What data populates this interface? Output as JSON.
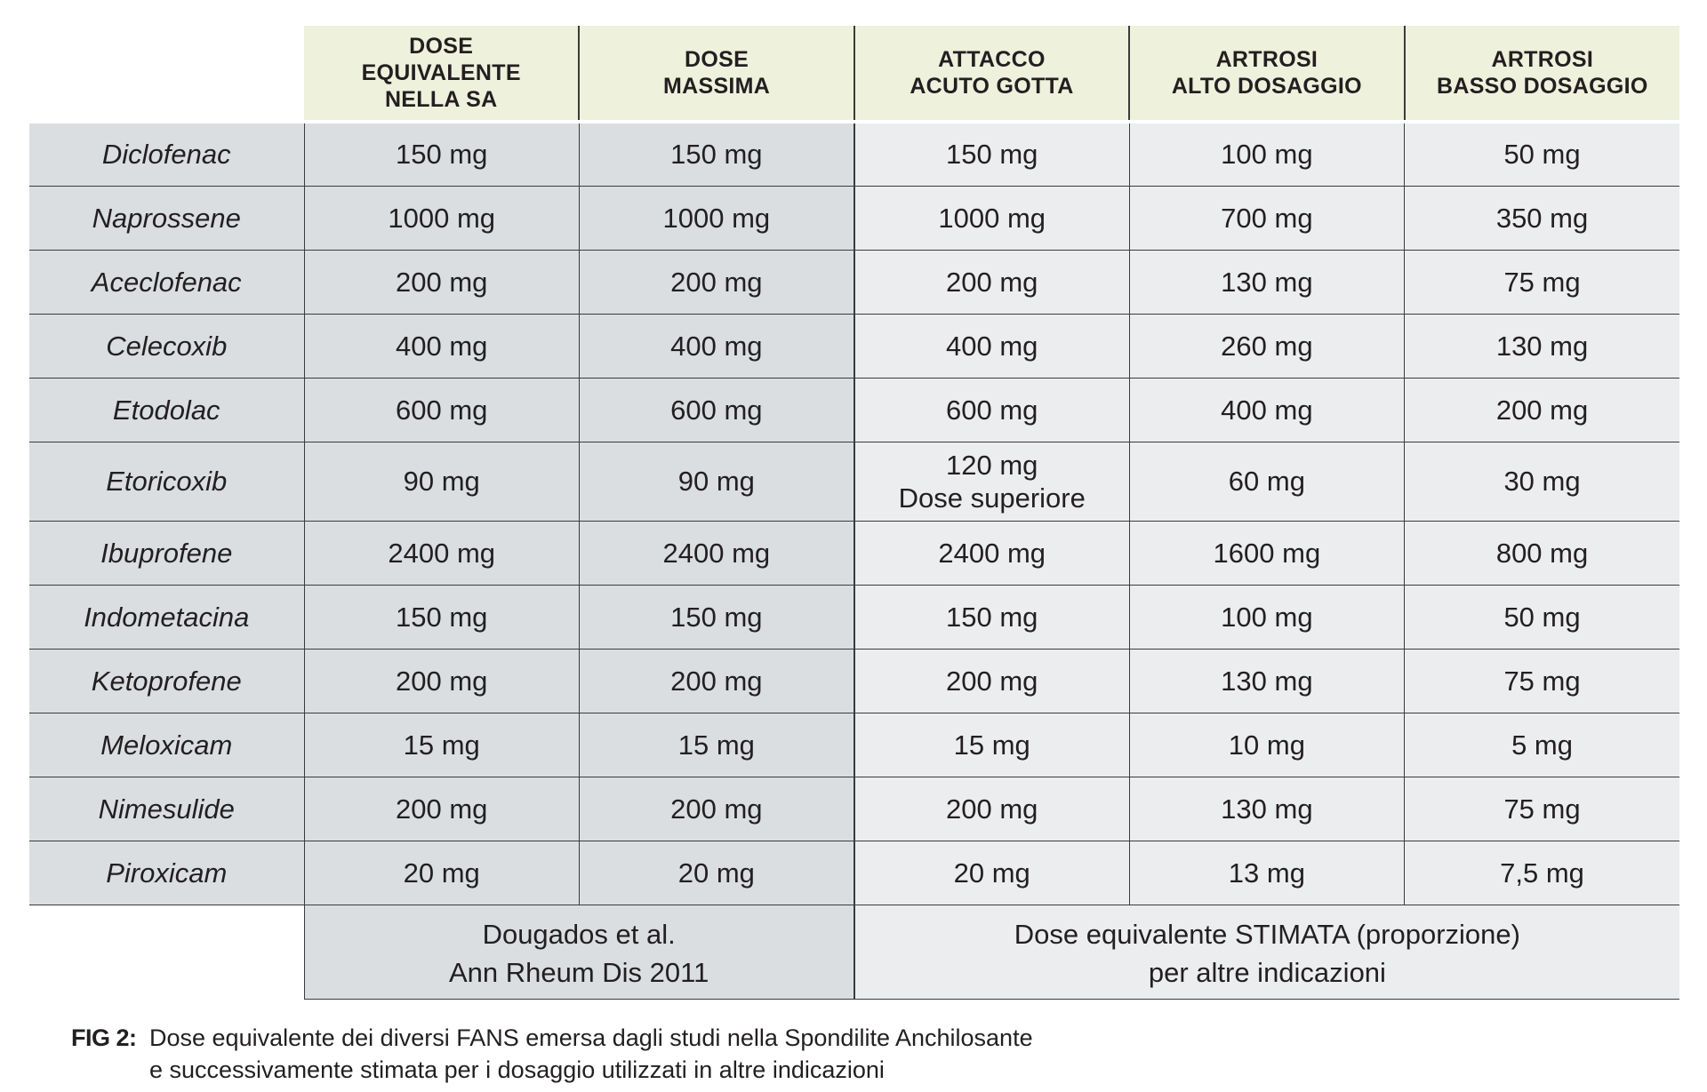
{
  "headers": [
    [
      "DOSE",
      "EQUIVALENTE",
      "NELLA SA"
    ],
    [
      "DOSE",
      "MASSIMA"
    ],
    [
      "ATTACCO",
      "ACUTO GOTTA"
    ],
    [
      "ARTROSI",
      "ALTO DOSAGGIO"
    ],
    [
      "ARTROSI",
      "BASSO DOSAGGIO"
    ]
  ],
  "rows": [
    {
      "drug": "Diclofenac",
      "values": [
        "150 mg",
        "150 mg",
        "150 mg",
        "100 mg",
        "50 mg"
      ]
    },
    {
      "drug": "Naprossene",
      "values": [
        "1000 mg",
        "1000 mg",
        "1000 mg",
        "700 mg",
        "350 mg"
      ]
    },
    {
      "drug": "Aceclofenac",
      "values": [
        "200 mg",
        "200 mg",
        "200 mg",
        "130 mg",
        "75 mg"
      ]
    },
    {
      "drug": "Celecoxib",
      "values": [
        "400 mg",
        "400 mg",
        "400 mg",
        "260 mg",
        "130 mg"
      ]
    },
    {
      "drug": "Etodolac",
      "values": [
        "600 mg",
        "600 mg",
        "600 mg",
        "400 mg",
        "200 mg"
      ]
    },
    {
      "drug": "Etoricoxib",
      "values": [
        "90 mg",
        "90 mg",
        "120 mg\nDose superiore",
        "60 mg",
        "30 mg"
      ]
    },
    {
      "drug": "Ibuprofene",
      "values": [
        "2400 mg",
        "2400 mg",
        "2400 mg",
        "1600 mg",
        "800 mg"
      ]
    },
    {
      "drug": "Indometacina",
      "values": [
        "150 mg",
        "150 mg",
        "150 mg",
        "100 mg",
        "50 mg"
      ]
    },
    {
      "drug": "Ketoprofene",
      "values": [
        "200 mg",
        "200 mg",
        "200 mg",
        "130 mg",
        "75 mg"
      ]
    },
    {
      "drug": "Meloxicam",
      "values": [
        "15 mg",
        "15 mg",
        "15 mg",
        "10 mg",
        "5 mg"
      ]
    },
    {
      "drug": "Nimesulide",
      "values": [
        "200 mg",
        "200 mg",
        "200 mg",
        "130 mg",
        "75 mg"
      ]
    },
    {
      "drug": "Piroxicam",
      "values": [
        "20 mg",
        "20 mg",
        "20 mg",
        "13 mg",
        "7,5 mg"
      ]
    }
  ],
  "sources": {
    "left": [
      "Dougados et al.",
      "Ann Rheum Dis 2011"
    ],
    "right": [
      "Dose equivalente STIMATA (proporzione)",
      "per altre indicazioni"
    ]
  },
  "caption": {
    "label": "FIG 2:",
    "line1": "Dose equivalente dei diversi FANS emersa dagli studi nella Spondilite Anchilosante",
    "line2": "e successivamente stimata per i dosaggio utilizzati in altre indicazioni"
  },
  "colors": {
    "header_bg": "#eef1dc",
    "dark_cell": "#dadee1",
    "light_cell": "#ecedef",
    "rule": "#3b3b3b",
    "text": "#231f20"
  }
}
